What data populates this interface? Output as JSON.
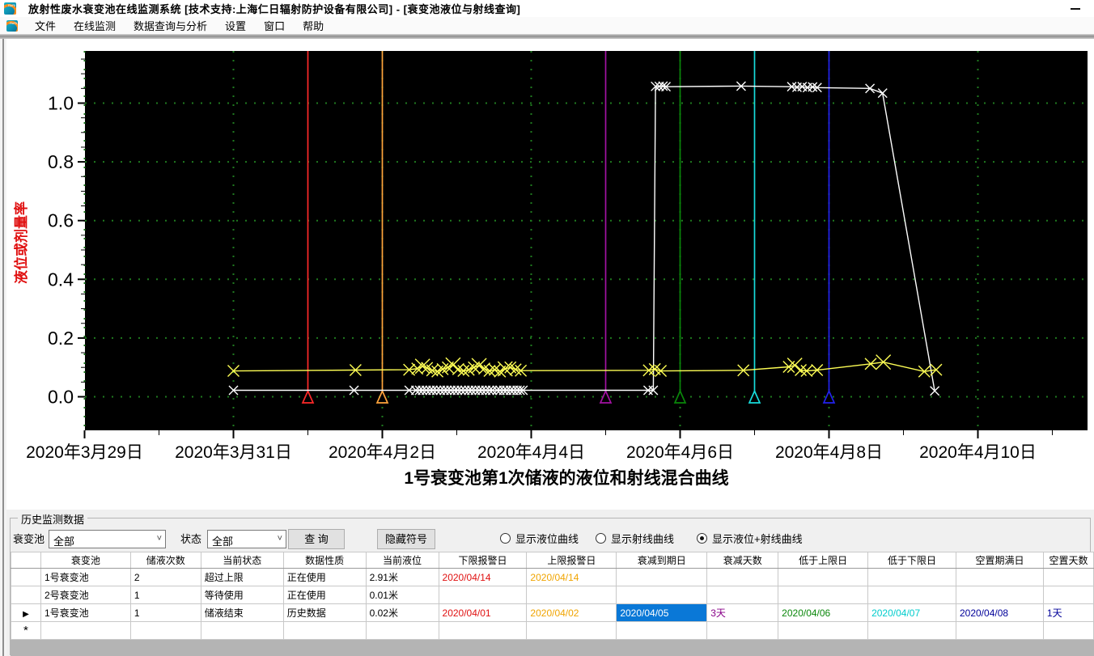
{
  "window": {
    "title": "放射性废水衰变池在线监测系统      [技术支持:上海仁日辐射防护设备有限公司] - [衰变池液位与射线查询]"
  },
  "menu": {
    "items": [
      "文件",
      "在线监测",
      "数据查询与分析",
      "设置",
      "窗口",
      "帮助"
    ]
  },
  "chart_data": {
    "type": "line",
    "title": "1号衰变池第1次储液的液位和射线混合曲线",
    "ylabel": "液位或剂量率",
    "x_start_date": "2020年3月29日",
    "x_tick_labels": [
      "2020年3月29日",
      "2020年3月31日",
      "2020年4月2日",
      "2020年4月4日",
      "2020年4月6日",
      "2020年4月8日",
      "2020年4月10日"
    ],
    "x_tick_days": [
      0,
      2,
      4,
      6,
      8,
      10,
      12
    ],
    "y_ticks": [
      0.0,
      0.2,
      0.4,
      0.6,
      0.8,
      1.0
    ],
    "ylim": [
      -0.115,
      1.178
    ],
    "xlim_days": [
      0,
      13.47
    ],
    "grid": "dotted",
    "legend_position": "none",
    "colors": {
      "plot_bg": "#000000",
      "grid": "#1f7a1f",
      "axis_text": "#000000",
      "ylabel_text": "#e01010"
    },
    "event_lines": [
      {
        "name": "下限报警日",
        "date": "2020/04/01",
        "day": 3,
        "color": "#ff2a2a"
      },
      {
        "name": "上限报警日",
        "date": "2020/04/02",
        "day": 4,
        "color": "#ffa43c"
      },
      {
        "name": "衰减到期日",
        "date": "2020/04/05",
        "day": 7,
        "color": "#a312a3"
      },
      {
        "name": "低于上限日",
        "date": "2020/04/06",
        "day": 8,
        "color": "#0a870a"
      },
      {
        "name": "低于下限日",
        "date": "2020/04/07",
        "day": 9,
        "color": "#17dcdc"
      },
      {
        "name": "空置期满日",
        "date": "2020/04/08",
        "day": 10,
        "color": "#2222ee"
      }
    ],
    "series": [
      {
        "name": "液位曲线",
        "color": "#ffffff",
        "marker": "x",
        "points": [
          [
            2.0,
            0.022
          ],
          [
            3.62,
            0.022
          ],
          [
            4.36,
            0.022
          ],
          [
            4.45,
            0.022
          ],
          [
            4.5,
            0.022
          ],
          [
            4.54,
            0.022
          ],
          [
            4.59,
            0.022
          ],
          [
            4.64,
            0.022
          ],
          [
            4.68,
            0.022
          ],
          [
            4.73,
            0.022
          ],
          [
            4.78,
            0.022
          ],
          [
            4.83,
            0.022
          ],
          [
            4.87,
            0.022
          ],
          [
            4.92,
            0.022
          ],
          [
            4.97,
            0.022
          ],
          [
            5.01,
            0.022
          ],
          [
            5.06,
            0.022
          ],
          [
            5.11,
            0.022
          ],
          [
            5.16,
            0.022
          ],
          [
            5.2,
            0.022
          ],
          [
            5.25,
            0.022
          ],
          [
            5.3,
            0.022
          ],
          [
            5.34,
            0.022
          ],
          [
            5.39,
            0.022
          ],
          [
            5.44,
            0.022
          ],
          [
            5.48,
            0.022
          ],
          [
            5.54,
            0.022
          ],
          [
            5.58,
            0.022
          ],
          [
            5.63,
            0.022
          ],
          [
            5.67,
            0.022
          ],
          [
            5.72,
            0.022
          ],
          [
            5.76,
            0.022
          ],
          [
            5.81,
            0.022
          ],
          [
            5.85,
            0.022
          ],
          [
            5.89,
            0.022
          ],
          [
            7.57,
            0.022
          ],
          [
            7.64,
            0.022
          ],
          [
            7.67,
            1.057
          ],
          [
            7.72,
            1.057
          ],
          [
            7.77,
            1.058
          ],
          [
            7.81,
            1.056
          ],
          [
            8.82,
            1.058
          ],
          [
            9.5,
            1.056
          ],
          [
            9.57,
            1.054
          ],
          [
            9.64,
            1.056
          ],
          [
            9.71,
            1.053
          ],
          [
            9.78,
            1.055
          ],
          [
            9.84,
            1.053
          ],
          [
            10.55,
            1.05
          ],
          [
            10.72,
            1.034
          ],
          [
            11.42,
            0.02
          ]
        ]
      },
      {
        "name": "射线曲线",
        "color": "#ffff55",
        "marker": "x",
        "points": [
          [
            2.0,
            0.088
          ],
          [
            3.64,
            0.091
          ],
          [
            4.36,
            0.092
          ],
          [
            4.47,
            0.096
          ],
          [
            4.54,
            0.104,
            1
          ],
          [
            4.6,
            0.098
          ],
          [
            4.67,
            0.09
          ],
          [
            4.74,
            0.086
          ],
          [
            4.81,
            0.094
          ],
          [
            4.88,
            0.1
          ],
          [
            4.95,
            0.108,
            1
          ],
          [
            5.02,
            0.094
          ],
          [
            5.09,
            0.088
          ],
          [
            5.16,
            0.092
          ],
          [
            5.23,
            0.1
          ],
          [
            5.3,
            0.106,
            1
          ],
          [
            5.37,
            0.096
          ],
          [
            5.44,
            0.088
          ],
          [
            5.51,
            0.092
          ],
          [
            5.58,
            0.086
          ],
          [
            5.65,
            0.095,
            1
          ],
          [
            5.72,
            0.1
          ],
          [
            5.79,
            0.093
          ],
          [
            5.86,
            0.089
          ],
          [
            7.58,
            0.09
          ],
          [
            7.66,
            0.094
          ],
          [
            7.74,
            0.088
          ],
          [
            8.85,
            0.09
          ],
          [
            9.46,
            0.102
          ],
          [
            9.54,
            0.107,
            1
          ],
          [
            9.62,
            0.091
          ],
          [
            9.7,
            0.088
          ],
          [
            9.84,
            0.091
          ],
          [
            10.56,
            0.112
          ],
          [
            10.73,
            0.118,
            1
          ],
          [
            11.28,
            0.086
          ],
          [
            11.44,
            0.092
          ]
        ]
      }
    ]
  },
  "panel": {
    "title": "历史监测数据",
    "filters": {
      "pool_label": "衰变池",
      "pool_value": "全部",
      "status_label": "状态",
      "status_value": "全部",
      "query_button": "查 询",
      "hide_symbols_button": "隐藏符号"
    },
    "radios": [
      {
        "label": "显示液位曲线",
        "selected": false
      },
      {
        "label": "显示射线曲线",
        "selected": false
      },
      {
        "label": "显示液位+射线曲线",
        "selected": true
      }
    ]
  },
  "table": {
    "headers": [
      "衰变池",
      "储液次数",
      "当前状态",
      "数据性质",
      "当前液位",
      "下限报警日",
      "上限报警日",
      "衰减到期日",
      "衰减天数",
      "低于上限日",
      "低于下限日",
      "空置期满日",
      "空置天数"
    ],
    "row_marker_current": "▶",
    "row_marker_new": "*",
    "rows": [
      {
        "marker": "",
        "cells": [
          {
            "t": "1号衰变池"
          },
          {
            "t": "2"
          },
          {
            "t": "超过上限"
          },
          {
            "t": "正在使用"
          },
          {
            "t": "2.91米"
          },
          {
            "t": "2020/04/14",
            "c": "#e01010"
          },
          {
            "t": "2020/04/14",
            "c": "#f0a400"
          },
          {
            "t": ""
          },
          {
            "t": ""
          },
          {
            "t": ""
          },
          {
            "t": ""
          },
          {
            "t": ""
          },
          {
            "t": ""
          }
        ]
      },
      {
        "marker": "",
        "cells": [
          {
            "t": "2号衰变池"
          },
          {
            "t": "1"
          },
          {
            "t": "等待使用"
          },
          {
            "t": "正在使用"
          },
          {
            "t": "0.01米"
          },
          {
            "t": ""
          },
          {
            "t": ""
          },
          {
            "t": ""
          },
          {
            "t": ""
          },
          {
            "t": ""
          },
          {
            "t": ""
          },
          {
            "t": ""
          },
          {
            "t": ""
          }
        ]
      },
      {
        "marker": "current",
        "cells": [
          {
            "t": "1号衰变池"
          },
          {
            "t": "1"
          },
          {
            "t": "储液结束"
          },
          {
            "t": "历史数据"
          },
          {
            "t": "0.02米"
          },
          {
            "t": "2020/04/01",
            "c": "#e01010"
          },
          {
            "t": "2020/04/02",
            "c": "#f0a400"
          },
          {
            "t": "2020/04/05",
            "sel": true
          },
          {
            "t": "3天",
            "c": "#880088"
          },
          {
            "t": "2020/04/06",
            "c": "#0a870a"
          },
          {
            "t": "2020/04/07",
            "c": "#00cccc"
          },
          {
            "t": "2020/04/08",
            "c": "#000099"
          },
          {
            "t": "1天",
            "c": "#000099"
          }
        ]
      },
      {
        "marker": "new",
        "cells": [
          {
            "t": ""
          },
          {
            "t": ""
          },
          {
            "t": ""
          },
          {
            "t": ""
          },
          {
            "t": ""
          },
          {
            "t": ""
          },
          {
            "t": ""
          },
          {
            "t": ""
          },
          {
            "t": ""
          },
          {
            "t": ""
          },
          {
            "t": ""
          },
          {
            "t": ""
          },
          {
            "t": ""
          }
        ]
      }
    ]
  }
}
